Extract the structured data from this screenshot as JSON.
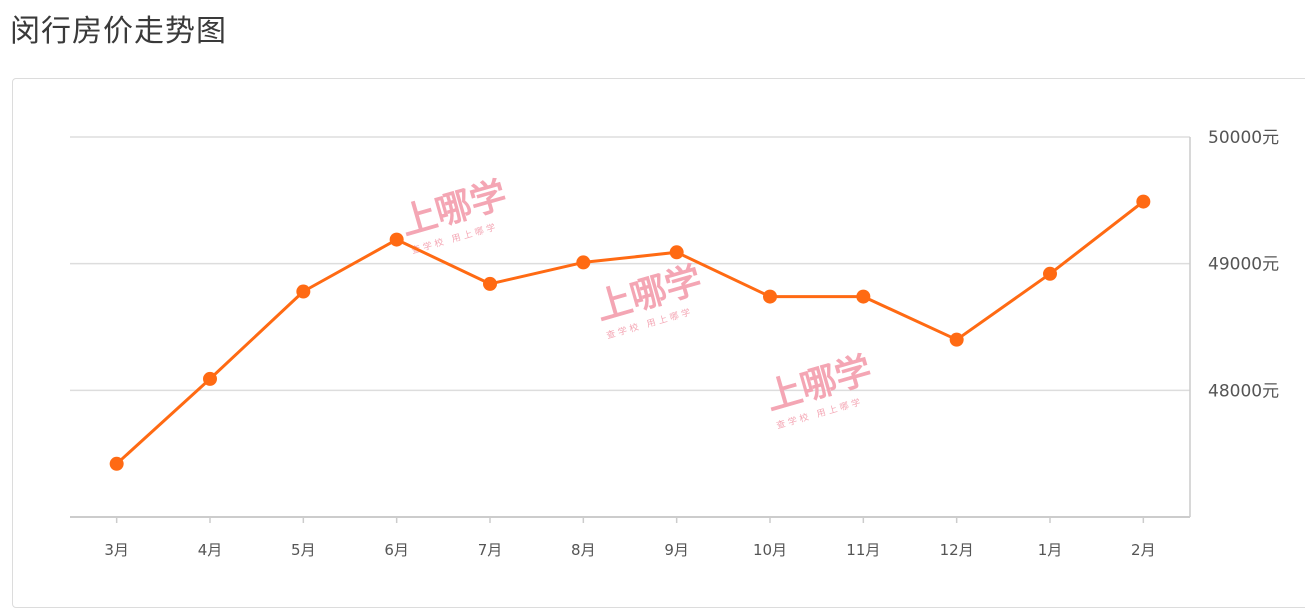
{
  "page": {
    "title": "闵行房价走势图"
  },
  "watermark": {
    "big": "上哪学",
    "small": "查学校 用上哪学"
  },
  "colors": {
    "line": "#ff6a13",
    "grid": "#dddddd",
    "axis": "#cccccc"
  },
  "chart_data": {
    "type": "line",
    "title": "闵行房价走势图",
    "xlabel": "",
    "ylabel": "",
    "categories": [
      "3月",
      "4月",
      "5月",
      "6月",
      "7月",
      "8月",
      "9月",
      "10月",
      "11月",
      "12月",
      "1月",
      "2月"
    ],
    "values": [
      47420,
      48090,
      48780,
      49190,
      48840,
      49010,
      49090,
      48740,
      48740,
      48400,
      48920,
      49490
    ],
    "ylim": [
      47000,
      50000
    ],
    "yticks": [
      48000,
      49000,
      50000
    ],
    "ytick_labels": [
      "48000元",
      "49000元",
      "50000元"
    ],
    "y_axis_side": "right",
    "grid": true,
    "legend": "none"
  }
}
